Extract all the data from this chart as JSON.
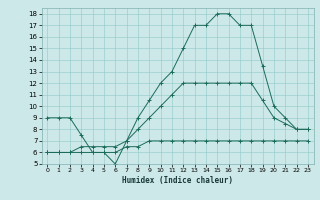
{
  "xlabel": "Humidex (Indice chaleur)",
  "xlim": [
    -0.5,
    23.5
  ],
  "ylim": [
    5,
    18.5
  ],
  "yticks": [
    5,
    6,
    7,
    8,
    9,
    10,
    11,
    12,
    13,
    14,
    15,
    16,
    17,
    18
  ],
  "xticks": [
    0,
    1,
    2,
    3,
    4,
    5,
    6,
    7,
    8,
    9,
    10,
    11,
    12,
    13,
    14,
    15,
    16,
    17,
    18,
    19,
    20,
    21,
    22,
    23
  ],
  "bg_color": "#cde8e8",
  "line_color": "#1a6b5a",
  "line1_x": [
    0,
    1,
    2,
    3,
    4,
    5,
    6,
    7,
    8,
    9,
    10,
    11,
    12,
    13,
    14,
    15,
    16,
    17,
    18,
    19,
    20,
    21,
    22,
    23
  ],
  "line1_y": [
    9,
    9,
    9,
    7.5,
    6,
    6,
    5,
    7,
    9,
    10.5,
    12,
    13,
    15,
    17,
    17,
    18,
    18,
    17,
    17,
    13.5,
    10,
    9,
    8,
    8
  ],
  "line2_x": [
    0,
    1,
    2,
    3,
    4,
    5,
    6,
    7,
    8,
    9,
    10,
    11,
    12,
    13,
    14,
    15,
    16,
    17,
    18,
    19,
    20,
    21,
    22,
    23
  ],
  "line2_y": [
    6,
    6,
    6,
    6,
    6,
    6,
    6,
    6.5,
    6.5,
    7,
    7,
    7,
    7,
    7,
    7,
    7,
    7,
    7,
    7,
    7,
    7,
    7,
    7,
    7
  ],
  "line3_x": [
    0,
    1,
    2,
    3,
    4,
    5,
    6,
    7,
    8,
    9,
    10,
    11,
    12,
    13,
    14,
    15,
    16,
    17,
    18,
    19,
    20,
    21,
    22,
    23
  ],
  "line3_y": [
    6,
    6,
    6,
    6.5,
    6.5,
    6.5,
    6.5,
    7,
    8,
    9,
    10,
    11,
    12,
    12,
    12,
    12,
    12,
    12,
    12,
    10.5,
    9,
    8.5,
    8,
    8
  ]
}
